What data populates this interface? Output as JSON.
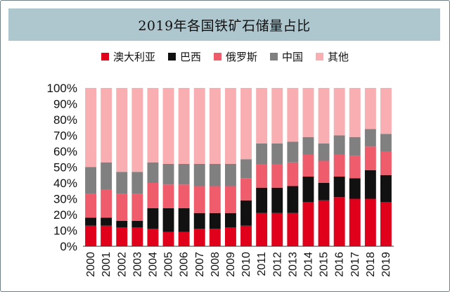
{
  "chart_data": {
    "type": "bar",
    "stacked": true,
    "title": "2019年各国铁矿石储量占比",
    "xlabel": "",
    "ylabel": "",
    "ylim": [
      0,
      100
    ],
    "y_ticks": [
      "0%",
      "10%",
      "20%",
      "30%",
      "40%",
      "50%",
      "60%",
      "70%",
      "80%",
      "90%",
      "100%"
    ],
    "categories": [
      "2000",
      "2001",
      "2002",
      "2003",
      "2004",
      "2005",
      "2006",
      "2007",
      "2008",
      "2009",
      "2010",
      "2011",
      "2012",
      "2013",
      "2014",
      "2015",
      "2016",
      "2017",
      "2018",
      "2019"
    ],
    "legend_position": "top",
    "grid": false,
    "series": [
      {
        "name": "澳大利亚",
        "color": "#e0001b",
        "values": [
          13,
          13,
          12,
          12,
          11,
          9,
          9,
          11,
          11,
          12,
          13,
          21,
          21,
          21,
          28,
          29,
          31,
          30,
          30,
          28
        ]
      },
      {
        "name": "巴西",
        "color": "#111111",
        "values": [
          5,
          5,
          4,
          4,
          13,
          15,
          15,
          10,
          10,
          9,
          16,
          16,
          16,
          17,
          16,
          11,
          13,
          13,
          18,
          17
        ]
      },
      {
        "name": "俄罗斯",
        "color": "#ef5d6d",
        "values": [
          15,
          18,
          17,
          17,
          16,
          15,
          15,
          17,
          17,
          17,
          14,
          15,
          15,
          15,
          14,
          14,
          14,
          14,
          15,
          15
        ]
      },
      {
        "name": "中国",
        "color": "#808080",
        "values": [
          17,
          17,
          14,
          14,
          13,
          13,
          13,
          14,
          14,
          14,
          12,
          13,
          13,
          13,
          11,
          11,
          12,
          12,
          11,
          11
        ]
      },
      {
        "name": "其他",
        "color": "#f9aeb2",
        "values": [
          50,
          47,
          53,
          53,
          47,
          48,
          48,
          48,
          48,
          48,
          45,
          35,
          35,
          34,
          31,
          35,
          30,
          31,
          26,
          29
        ]
      }
    ]
  }
}
